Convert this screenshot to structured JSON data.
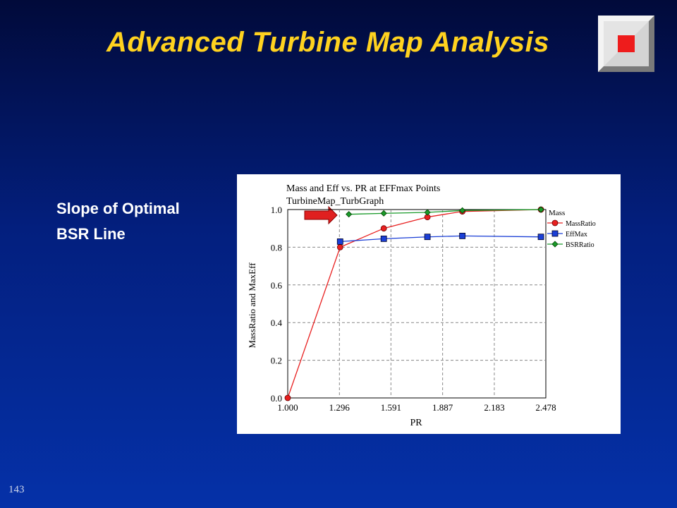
{
  "slide": {
    "title": "Advanced Turbine Map Analysis",
    "side_line_1": "Slope of Optimal",
    "side_line_2": "BSR Line",
    "number": "143"
  },
  "colors": {
    "background": "#0531a8",
    "title": "#ffd21f",
    "mass_ratio": "#e82020",
    "eff_max": "#1b3fd6",
    "bsr_ratio": "#1a9a2a",
    "arrow": "#e02020"
  },
  "chart_data": {
    "type": "line",
    "title": "Mass and Eff vs. PR at EFFmax Points",
    "subtitle": "TurbineMap_TurbGraph",
    "xlabel": "PR",
    "ylabel": "MassRatio and MaxEff",
    "xlim": [
      1.0,
      2.478
    ],
    "ylim": [
      0.0,
      1.0
    ],
    "x_ticks": [
      "1.000",
      "1.296",
      "1.591",
      "1.887",
      "2.183",
      "2.478"
    ],
    "y_ticks": [
      "0.0",
      "0.2",
      "0.4",
      "0.6",
      "0.8",
      "1.0"
    ],
    "grid": true,
    "legend_title": "Mass",
    "legend_position": "right",
    "series": [
      {
        "name": "MassRatio",
        "color": "#e82020",
        "marker": "circle",
        "x": [
          1.0,
          1.3,
          1.55,
          1.8,
          2.0,
          2.45
        ],
        "y": [
          0.0,
          0.8,
          0.9,
          0.96,
          0.99,
          1.0
        ]
      },
      {
        "name": "EffMax",
        "color": "#1b3fd6",
        "marker": "square",
        "x": [
          1.3,
          1.55,
          1.8,
          2.0,
          2.45
        ],
        "y": [
          0.83,
          0.845,
          0.855,
          0.86,
          0.855
        ]
      },
      {
        "name": "BSRRatio",
        "color": "#1a9a2a",
        "marker": "diamond",
        "x": [
          1.35,
          1.55,
          1.8,
          2.0,
          2.45
        ],
        "y": [
          0.975,
          0.98,
          0.985,
          0.995,
          1.0
        ]
      }
    ]
  }
}
